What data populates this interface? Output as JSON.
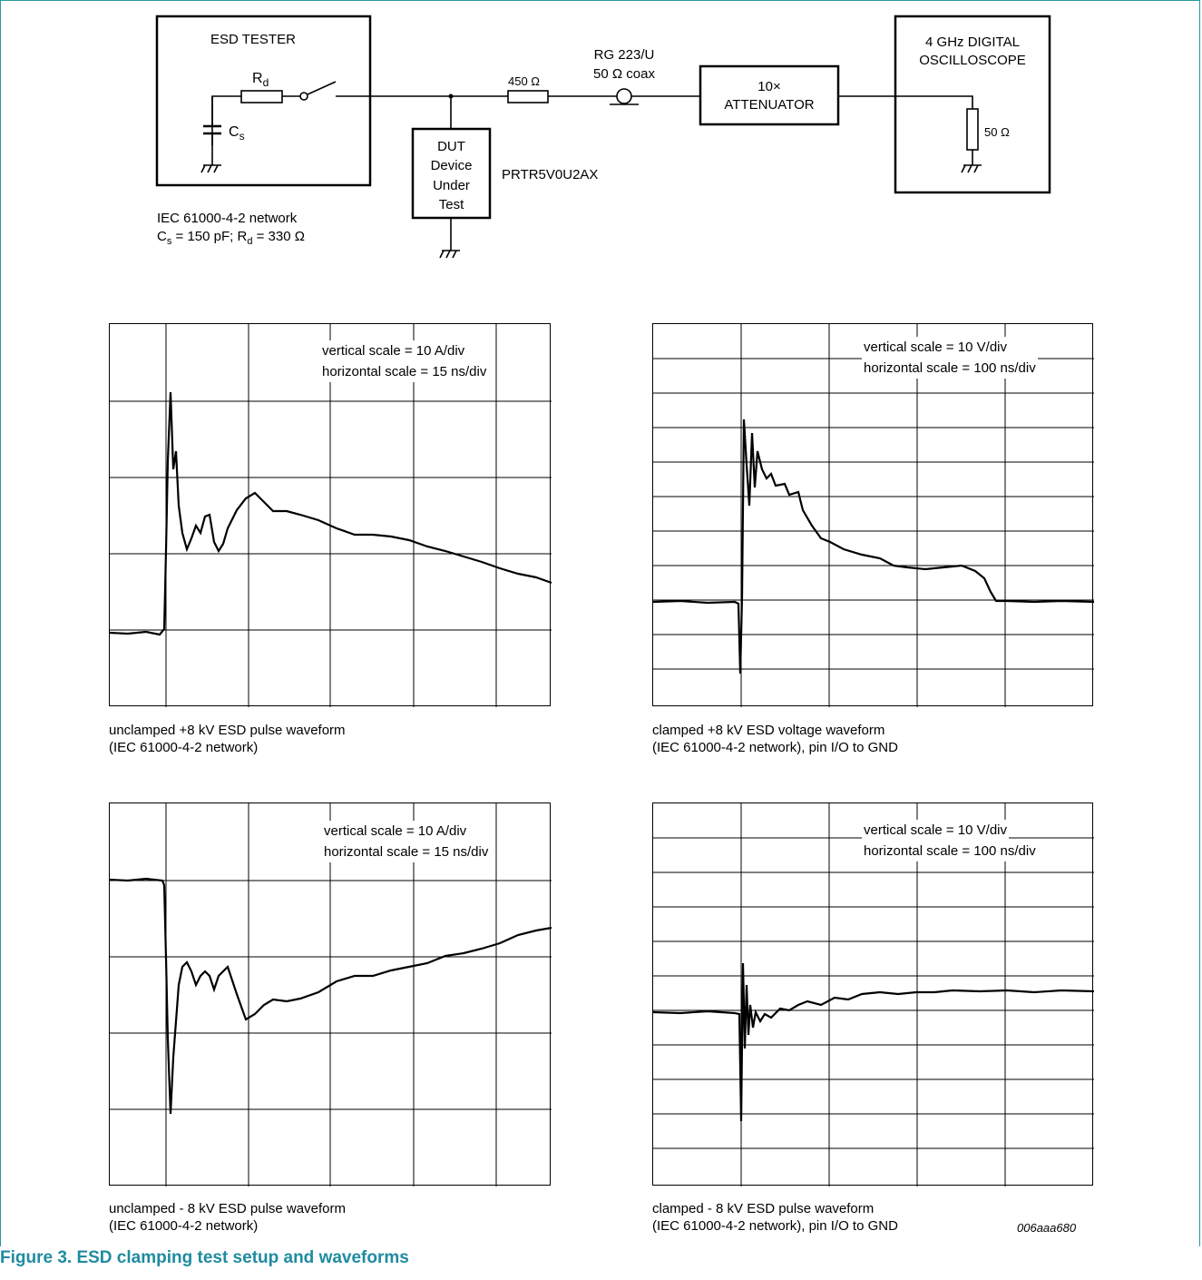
{
  "setup": {
    "esd_tester_label": "ESD TESTER",
    "rd_label": "R",
    "rd_sub": "d",
    "cs_label": "C",
    "cs_sub": "s",
    "network_line1": "IEC 61000-4-2 network",
    "network_line2_c": "C",
    "network_line2_cs_sub": "s",
    "network_line2_mid": " = 150 pF; R",
    "network_line2_rd_sub": "d",
    "network_line2_end": " = 330 Ω",
    "dut_line1": "DUT",
    "dut_line2": "Device",
    "dut_line3": "Under",
    "dut_line4": "Test",
    "part_number": "PRTR5V0U2AX",
    "resistor_450": "450 Ω",
    "coax_line1": "RG 223/U",
    "coax_line2": "50 Ω coax",
    "attenuator_line1": "10×",
    "attenuator_line2": "ATTENUATOR",
    "scope_line1": "4 GHz DIGITAL",
    "scope_line2": "OSCILLOSCOPE",
    "scope_res": "50 Ω"
  },
  "plots": [
    {
      "vscale": "vertical scale = 10 A/div",
      "hscale": "horizontal scale = 15 ns/div",
      "caption": "unclamped +8 kV ESD pulse waveform\n(IEC 61000-4-2 network)"
    },
    {
      "vscale": "vertical scale = 10 V/div",
      "hscale": "horizontal scale = 100 ns/div",
      "caption": "clamped +8 kV ESD voltage waveform\n(IEC 61000-4-2 network), pin I/O to GND"
    },
    {
      "vscale": "vertical scale = 10 A/div",
      "hscale": "horizontal scale = 15 ns/div",
      "caption": "unclamped - 8 kV ESD pulse waveform\n(IEC 61000-4-2 network)"
    },
    {
      "vscale": "vertical scale = 10 V/div",
      "hscale": "horizontal scale = 100 ns/div",
      "caption": "clamped - 8 kV ESD pulse waveform\n(IEC 61000-4-2 network), pin I/O to GND"
    }
  ],
  "reference_code": "006aaa680",
  "figure_title": "Figure 3. ESD clamping test setup and waveforms"
}
